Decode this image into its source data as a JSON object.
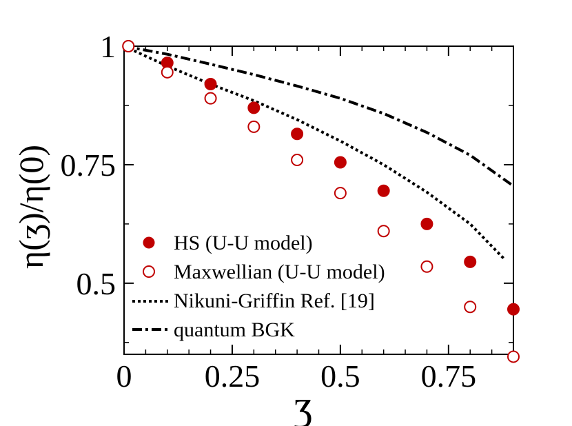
{
  "chart_data": {
    "type": "scatter",
    "title": "",
    "xlabel": "ʒ",
    "ylabel": "η(ʒ)/η(0)",
    "xlim": [
      0,
      0.9
    ],
    "ylim": [
      0.35,
      1.0
    ],
    "x_ticks": [
      0,
      0.25,
      0.5,
      0.75
    ],
    "x_tick_labels": [
      "0",
      "0.25",
      "0.5",
      "0.75"
    ],
    "y_ticks": [
      0.5,
      0.75,
      1.0
    ],
    "y_tick_labels": [
      "0.5",
      "0.75",
      "1"
    ],
    "grid": false,
    "legend_position": "bottom-left",
    "colors": {
      "marker": "#c00000",
      "line": "#000000"
    },
    "series": [
      {
        "name": "HS (U-U model)",
        "style": "filled-circle",
        "x": [
          0.01,
          0.1,
          0.2,
          0.3,
          0.4,
          0.5,
          0.6,
          0.7,
          0.8,
          0.9
        ],
        "y": [
          1.0,
          0.965,
          0.92,
          0.87,
          0.815,
          0.755,
          0.695,
          0.625,
          0.545,
          0.445
        ]
      },
      {
        "name": "Maxwellian (U-U model)",
        "style": "open-circle",
        "x": [
          0.01,
          0.1,
          0.2,
          0.3,
          0.4,
          0.5,
          0.6,
          0.7,
          0.8,
          0.9
        ],
        "y": [
          1.0,
          0.945,
          0.89,
          0.83,
          0.76,
          0.69,
          0.61,
          0.535,
          0.45,
          0.345
        ]
      },
      {
        "name": "Nikuni-Griffin Ref. [19]",
        "style": "dotted-line",
        "x": [
          0.0,
          0.1,
          0.2,
          0.3,
          0.4,
          0.5,
          0.6,
          0.7,
          0.8,
          0.88
        ],
        "y": [
          1.0,
          0.958,
          0.92,
          0.885,
          0.845,
          0.8,
          0.75,
          0.692,
          0.625,
          0.55
        ]
      },
      {
        "name": "quantum BGK",
        "style": "dash-dot-line",
        "x": [
          0.0,
          0.1,
          0.2,
          0.3,
          0.4,
          0.5,
          0.6,
          0.7,
          0.8,
          0.9
        ],
        "y": [
          1.0,
          0.983,
          0.962,
          0.94,
          0.916,
          0.89,
          0.858,
          0.818,
          0.77,
          0.705
        ]
      }
    ]
  }
}
